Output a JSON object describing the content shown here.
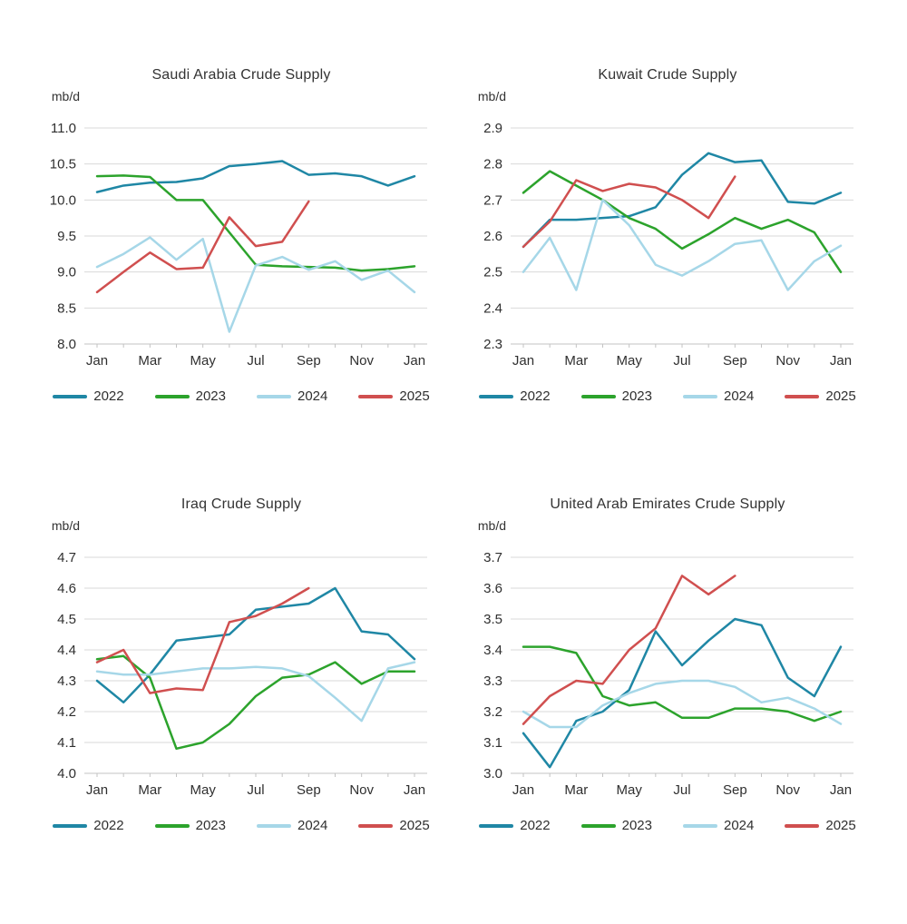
{
  "colors": {
    "y2022": "#1f87a5",
    "y2023": "#2ca32c",
    "y2024": "#a6d7e8",
    "y2025": "#d04f4f",
    "gridline": "#d9d9d9",
    "axis": "#c3c3c3",
    "text": "#2f2f2f"
  },
  "chart_data": [
    {
      "type": "line",
      "title": "Saudi Arabia Crude Supply",
      "ylabel": "mb/d",
      "x_tick_labels": [
        "Jan",
        "Mar",
        "May",
        "Jul",
        "Sep",
        "Nov",
        "Jan"
      ],
      "ylim": [
        8.0,
        11.0
      ],
      "ytick_step": 0.5,
      "grid": true,
      "legend_position": "bottom",
      "series": [
        {
          "name": "2022",
          "color": "#1f87a5",
          "values": [
            10.11,
            10.2,
            10.24,
            10.25,
            10.3,
            10.47,
            10.5,
            10.54,
            10.35,
            10.37,
            10.33,
            10.2,
            10.33
          ]
        },
        {
          "name": "2023",
          "color": "#2ca32c",
          "values": [
            10.33,
            10.34,
            10.32,
            10.0,
            10.0,
            9.55,
            9.1,
            9.08,
            9.07,
            9.06,
            9.02,
            9.04,
            9.08
          ]
        },
        {
          "name": "2024",
          "color": "#a6d7e8",
          "values": [
            9.07,
            9.25,
            9.48,
            9.17,
            9.46,
            8.17,
            9.09,
            9.21,
            9.03,
            9.15,
            8.89,
            9.02,
            8.72
          ]
        },
        {
          "name": "2025",
          "color": "#d04f4f",
          "values": [
            8.72,
            9.0,
            9.27,
            9.04,
            9.06,
            9.76,
            9.36,
            9.42,
            9.98
          ]
        }
      ]
    },
    {
      "type": "line",
      "title": "Kuwait Crude Supply",
      "ylabel": "mb/d",
      "x_tick_labels": [
        "Jan",
        "Mar",
        "May",
        "Jul",
        "Sep",
        "Nov",
        "Jan"
      ],
      "ylim": [
        2.3,
        2.9
      ],
      "ytick_step": 0.1,
      "grid": true,
      "legend_position": "bottom",
      "series": [
        {
          "name": "2022",
          "color": "#1f87a5",
          "values": [
            2.57,
            2.645,
            2.645,
            2.65,
            2.655,
            2.68,
            2.77,
            2.83,
            2.805,
            2.81,
            2.695,
            2.69,
            2.72
          ]
        },
        {
          "name": "2023",
          "color": "#2ca32c",
          "values": [
            2.72,
            2.78,
            2.74,
            2.7,
            2.65,
            2.62,
            2.565,
            2.605,
            2.65,
            2.62,
            2.645,
            2.61,
            2.5
          ]
        },
        {
          "name": "2024",
          "color": "#a6d7e8",
          "values": [
            2.5,
            2.595,
            2.45,
            2.7,
            2.63,
            2.52,
            2.49,
            2.53,
            2.578,
            2.588,
            2.45,
            2.53,
            2.573
          ]
        },
        {
          "name": "2025",
          "color": "#d04f4f",
          "values": [
            2.57,
            2.64,
            2.755,
            2.725,
            2.745,
            2.735,
            2.7,
            2.65,
            2.765
          ]
        }
      ]
    },
    {
      "type": "line",
      "title": "Iraq Crude Supply",
      "ylabel": "mb/d",
      "x_tick_labels": [
        "Jan",
        "Mar",
        "May",
        "Jul",
        "Sep",
        "Nov",
        "Jan"
      ],
      "ylim": [
        4.0,
        4.7
      ],
      "ytick_step": 0.1,
      "grid": true,
      "legend_position": "bottom",
      "series": [
        {
          "name": "2022",
          "color": "#1f87a5",
          "values": [
            4.3,
            4.23,
            4.32,
            4.43,
            4.44,
            4.45,
            4.53,
            4.54,
            4.55,
            4.6,
            4.46,
            4.45,
            4.37
          ]
        },
        {
          "name": "2023",
          "color": "#2ca32c",
          "values": [
            4.37,
            4.38,
            4.31,
            4.08,
            4.1,
            4.16,
            4.25,
            4.31,
            4.32,
            4.36,
            4.29,
            4.33,
            4.33
          ]
        },
        {
          "name": "2024",
          "color": "#a6d7e8",
          "values": [
            4.33,
            4.32,
            4.32,
            4.33,
            4.34,
            4.34,
            4.345,
            4.34,
            4.315,
            4.245,
            4.17,
            4.34,
            4.36
          ]
        },
        {
          "name": "2025",
          "color": "#d04f4f",
          "values": [
            4.36,
            4.4,
            4.26,
            4.275,
            4.27,
            4.49,
            4.51,
            4.55,
            4.6
          ]
        }
      ]
    },
    {
      "type": "line",
      "title": "United Arab Emirates Crude Supply",
      "ylabel": "mb/d",
      "x_tick_labels": [
        "Jan",
        "Mar",
        "May",
        "Jul",
        "Sep",
        "Nov",
        "Jan"
      ],
      "ylim": [
        3.0,
        3.7
      ],
      "ytick_step": 0.1,
      "grid": true,
      "legend_position": "bottom",
      "series": [
        {
          "name": "2022",
          "color": "#1f87a5",
          "values": [
            3.13,
            3.02,
            3.17,
            3.2,
            3.27,
            3.46,
            3.35,
            3.43,
            3.5,
            3.48,
            3.31,
            3.25,
            3.41
          ]
        },
        {
          "name": "2023",
          "color": "#2ca32c",
          "values": [
            3.41,
            3.41,
            3.39,
            3.25,
            3.22,
            3.23,
            3.18,
            3.18,
            3.21,
            3.21,
            3.2,
            3.17,
            3.2
          ]
        },
        {
          "name": "2024",
          "color": "#a6d7e8",
          "values": [
            3.2,
            3.15,
            3.15,
            3.22,
            3.26,
            3.29,
            3.3,
            3.3,
            3.28,
            3.23,
            3.245,
            3.21,
            3.16
          ]
        },
        {
          "name": "2025",
          "color": "#d04f4f",
          "values": [
            3.16,
            3.25,
            3.3,
            3.29,
            3.4,
            3.47,
            3.64,
            3.58,
            3.64
          ]
        }
      ]
    }
  ]
}
